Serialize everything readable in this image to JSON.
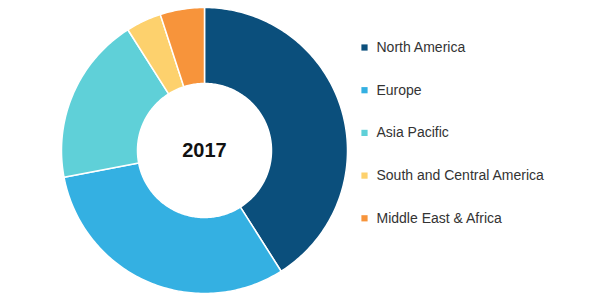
{
  "chart_data": {
    "type": "donut",
    "annotations": [
      "2017"
    ],
    "categories": [
      "North America",
      "Europe",
      "Asia Pacific",
      "South and Central America",
      "Middle East & Africa"
    ],
    "values": [
      41,
      31,
      19,
      4,
      5
    ],
    "colors": [
      "#0b4f7c",
      "#34b0e2",
      "#5fd0d8",
      "#fdd16d",
      "#f7943b"
    ],
    "legend": "right"
  }
}
